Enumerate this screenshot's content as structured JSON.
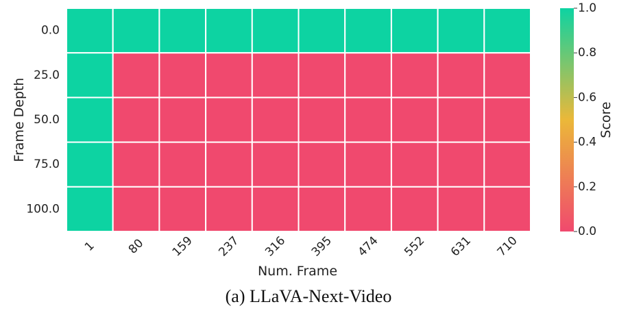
{
  "caption": "(a) LLaVA-Next-Video",
  "chart_data": {
    "type": "heatmap",
    "xlabel": "Num. Frame",
    "ylabel": "Frame Depth",
    "x_categories": [
      "1",
      "80",
      "159",
      "237",
      "316",
      "395",
      "474",
      "552",
      "631",
      "710"
    ],
    "y_categories": [
      "0.0",
      "25.0",
      "50.0",
      "75.0",
      "100.0"
    ],
    "values": [
      [
        1,
        1,
        1,
        1,
        1,
        1,
        1,
        1,
        1,
        1
      ],
      [
        1,
        0,
        0,
        0,
        0,
        0,
        0,
        0,
        0,
        0
      ],
      [
        1,
        0,
        0,
        0,
        0,
        0,
        0,
        0,
        0,
        0
      ],
      [
        1,
        0,
        0,
        0,
        0,
        0,
        0,
        0,
        0,
        0
      ],
      [
        1,
        0,
        0,
        0,
        0,
        0,
        0,
        0,
        0,
        0
      ]
    ],
    "colorbar": {
      "label": "Score",
      "range": [
        0.0,
        1.0
      ],
      "ticks": [
        "0.0",
        "0.2",
        "0.4",
        "0.6",
        "0.8",
        "1.0"
      ],
      "colors": [
        "#F0496E",
        "#EBB839",
        "#0DD3A2"
      ]
    },
    "gridlines": true
  }
}
